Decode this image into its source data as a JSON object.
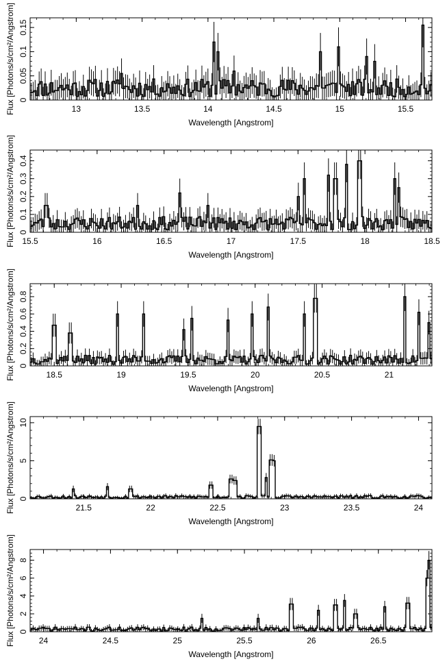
{
  "chart_data": [
    {
      "type": "line",
      "style": "histogram-steps with error bars",
      "xlabel": "Wavelength [Angstrom]",
      "ylabel": "Flux [Photons/s/cm²/Angstrom]",
      "xlim": [
        12.65,
        15.7
      ],
      "ylim": [
        0,
        0.17
      ],
      "xticks": [
        13,
        13.5,
        14,
        14.5,
        15,
        15.5
      ],
      "xtick_labels": [
        "13",
        "13.5",
        "14",
        "14.5",
        "15",
        "15.5"
      ],
      "yticks": [
        0,
        0.05,
        0.1,
        0.15
      ],
      "ytick_labels": [
        "0",
        "0.05",
        "0.1",
        "0.15"
      ],
      "baseline": 0.025,
      "peaks": [
        [
          13.35,
          0.055
        ],
        [
          14.05,
          0.12
        ],
        [
          14.08,
          0.1
        ],
        [
          14.2,
          0.06
        ],
        [
          14.85,
          0.1
        ],
        [
          14.99,
          0.11
        ],
        [
          15.2,
          0.09
        ],
        [
          15.27,
          0.08
        ],
        [
          15.63,
          0.155
        ]
      ],
      "seed": 11
    },
    {
      "type": "line",
      "style": "histogram-steps with error bars",
      "xlabel": "Wavelength [Angstrom]",
      "ylabel": "Flux [Photons/s/cm²/Angstrom]",
      "xlim": [
        15.5,
        18.5
      ],
      "ylim": [
        0,
        0.46
      ],
      "xticks": [
        15.5,
        16,
        16.5,
        17,
        17.5,
        18,
        18.5
      ],
      "xtick_labels": [
        "15.5",
        "16",
        "16.5",
        "17",
        "17.5",
        "18",
        "18.5"
      ],
      "yticks": [
        0,
        0.1,
        0.2,
        0.3,
        0.4
      ],
      "ytick_labels": [
        "0",
        "0.1",
        "0.2",
        "0.3",
        "0.4"
      ],
      "baseline": 0.05,
      "peaks": [
        [
          15.62,
          0.15
        ],
        [
          16.3,
          0.15
        ],
        [
          16.62,
          0.22
        ],
        [
          16.83,
          0.15
        ],
        [
          17.5,
          0.2
        ],
        [
          17.55,
          0.3
        ],
        [
          17.73,
          0.32
        ],
        [
          17.78,
          0.3
        ],
        [
          17.86,
          0.38
        ],
        [
          17.96,
          0.4
        ],
        [
          18.22,
          0.3
        ],
        [
          18.25,
          0.25
        ]
      ],
      "seed": 23
    },
    {
      "type": "line",
      "style": "histogram-steps with error bars",
      "xlabel": "Wavelength [Angstrom]",
      "ylabel": "Flux [Photons/s/cm²/Angstrom]",
      "xlim": [
        18.32,
        21.32
      ],
      "ylim": [
        0,
        0.95
      ],
      "xticks": [
        18.5,
        19,
        19.5,
        20,
        20.5,
        21
      ],
      "xtick_labels": [
        "18.5",
        "19",
        "19.5",
        "20",
        "20.5",
        "21"
      ],
      "yticks": [
        0,
        0.2,
        0.4,
        0.6,
        0.8
      ],
      "ytick_labels": [
        "0",
        "0.2",
        "0.4",
        "0.6",
        "0.8"
      ],
      "baseline": 0.07,
      "peaks": [
        [
          18.5,
          0.47
        ],
        [
          18.62,
          0.38
        ],
        [
          18.97,
          0.6
        ],
        [
          19.17,
          0.6
        ],
        [
          19.47,
          0.42
        ],
        [
          19.53,
          0.55
        ],
        [
          19.8,
          0.53
        ],
        [
          19.98,
          0.6
        ],
        [
          20.1,
          0.68
        ],
        [
          20.37,
          0.6
        ],
        [
          20.45,
          0.78
        ],
        [
          21.12,
          0.8
        ],
        [
          21.22,
          0.62
        ],
        [
          21.3,
          0.5
        ]
      ],
      "seed": 37
    },
    {
      "type": "line",
      "style": "histogram-steps with error bars",
      "xlabel": "Wavelength [Angstrom]",
      "ylabel": "Flux [Photons/s/cm²/Angstrom]",
      "xlim": [
        21.1,
        24.1
      ],
      "ylim": [
        0,
        10.8
      ],
      "xticks": [
        21.5,
        22,
        22.5,
        23,
        23.5,
        24
      ],
      "xtick_labels": [
        "21.5",
        "22",
        "22.5",
        "23",
        "23.5",
        "24"
      ],
      "yticks": [
        0,
        5,
        10
      ],
      "ytick_labels": [
        "0",
        "5",
        "10"
      ],
      "baseline": 0.25,
      "peaks": [
        [
          21.42,
          1.3
        ],
        [
          21.68,
          1.6
        ],
        [
          21.85,
          1.3
        ],
        [
          22.45,
          1.8
        ],
        [
          22.6,
          2.6
        ],
        [
          22.63,
          2.4
        ],
        [
          22.81,
          9.5
        ],
        [
          22.86,
          2.8
        ],
        [
          22.9,
          5.1
        ],
        [
          22.92,
          5.0
        ]
      ],
      "seed": 53
    },
    {
      "type": "line",
      "style": "histogram-steps with error bars",
      "xlabel": "Wavelength [Angstrom]",
      "ylabel": "Flux [Photons/s/cm²/Angstrom]",
      "xlim": [
        23.9,
        26.9
      ],
      "ylim": [
        0,
        9.2
      ],
      "xticks": [
        24,
        24.5,
        25,
        25.5,
        26,
        26.5
      ],
      "xtick_labels": [
        "24",
        "24.5",
        "25",
        "25.5",
        "26",
        "26.5"
      ],
      "yticks": [
        0,
        2,
        4,
        6,
        8
      ],
      "ytick_labels": [
        "0",
        "2",
        "4",
        "6",
        "8"
      ],
      "baseline": 0.3,
      "peaks": [
        [
          25.18,
          1.5
        ],
        [
          25.6,
          1.5
        ],
        [
          25.85,
          3.1
        ],
        [
          26.05,
          2.4
        ],
        [
          26.18,
          3.0
        ],
        [
          26.25,
          3.5
        ],
        [
          26.33,
          2.0
        ],
        [
          26.55,
          2.8
        ],
        [
          26.72,
          3.2
        ],
        [
          26.86,
          6.0
        ],
        [
          26.88,
          8.0
        ]
      ],
      "seed": 71
    }
  ]
}
